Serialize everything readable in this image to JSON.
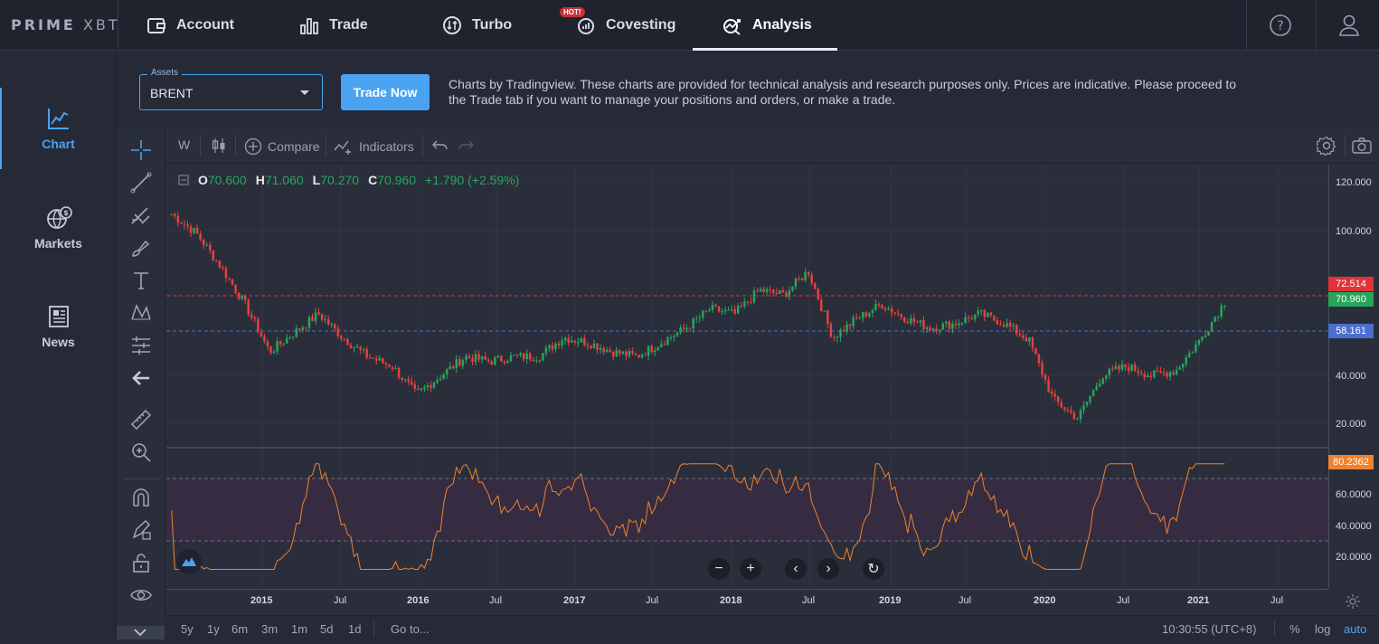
{
  "brand": {
    "logo_main": "PRIME",
    "logo_sub": "XBT"
  },
  "nav": {
    "tabs": [
      {
        "label": "Account",
        "icon": "wallet-icon"
      },
      {
        "label": "Trade",
        "icon": "bar-chart-icon"
      },
      {
        "label": "Turbo",
        "icon": "turbo-icon"
      },
      {
        "label": "Covesting",
        "icon": "covesting-icon",
        "badge": "HOT!"
      },
      {
        "label": "Analysis",
        "icon": "analysis-icon",
        "active": true
      }
    ],
    "help_icon": "help-icon",
    "profile_icon": "user-icon"
  },
  "sidebar": {
    "items": [
      {
        "label": "Chart",
        "icon": "chart-line-icon",
        "active": true
      },
      {
        "label": "Markets",
        "icon": "globe-dollar-icon"
      },
      {
        "label": "News",
        "icon": "newspaper-icon"
      }
    ]
  },
  "assets": {
    "label": "Assets",
    "value": "BRENT"
  },
  "trade_now": "Trade Now",
  "disclaimer": "Charts by Tradingview. These charts are provided for technical analysis and research purposes only. Prices are indicative. Please proceed to the Trade tab if you want to manage your positions and orders, or make a trade.",
  "toolbar": {
    "interval": "W",
    "compare": "Compare",
    "indicators": "Indicators"
  },
  "ohlc": {
    "o_key": "O",
    "o": "70.600",
    "h_key": "H",
    "h": "71.060",
    "l_key": "L",
    "l": "70.270",
    "c_key": "C",
    "c": "70.960",
    "change": "+1.790 (+2.59%)"
  },
  "price_labels": [
    "120.000",
    "100.000",
    "40.000",
    "20.000"
  ],
  "price_tags": {
    "red": "72.514",
    "green": "70.960",
    "blue": "58.161",
    "rsi": "80.2362"
  },
  "rsi_labels": [
    "60.0000",
    "40.0000",
    "20.0000"
  ],
  "time_labels": [
    "2015",
    "Jul",
    "2016",
    "Jul",
    "2017",
    "Jul",
    "2018",
    "Jul",
    "2019",
    "Jul",
    "2020",
    "Jul",
    "2021",
    "Jul"
  ],
  "bottom_bar": {
    "ranges": [
      "5y",
      "1y",
      "6m",
      "3m",
      "1m",
      "5d",
      "1d"
    ],
    "goto": "Go to...",
    "time": "10:30:55 (UTC+8)",
    "percent": "%",
    "log": "log",
    "auto": "auto"
  },
  "colors": {
    "accent": "#4aa3f0",
    "up": "#26a65b",
    "down": "#e5413e",
    "rsi": "#f0822d",
    "red_line": "#e0323a",
    "blue_line": "#4a6fd1"
  },
  "chart_data": {
    "type": "candlestick",
    "symbol": "BRENT",
    "interval": "W",
    "x": [
      "2014-09",
      "2014-10",
      "2014-11",
      "2014-12",
      "2015-01",
      "2015-03",
      "2015-05",
      "2015-07",
      "2015-09",
      "2015-11",
      "2016-01",
      "2016-03",
      "2016-05",
      "2016-07",
      "2016-09",
      "2016-11",
      "2017-01",
      "2017-03",
      "2017-05",
      "2017-07",
      "2017-09",
      "2017-11",
      "2018-01",
      "2018-03",
      "2018-05",
      "2018-07",
      "2018-10",
      "2018-12",
      "2019-02",
      "2019-04",
      "2019-06",
      "2019-08",
      "2019-10",
      "2019-12",
      "2020-01",
      "2020-02",
      "2020-03",
      "2020-04",
      "2020-06",
      "2020-08",
      "2020-10",
      "2020-11",
      "2021-01",
      "2021-03"
    ],
    "close": [
      108,
      100,
      86,
      70,
      50,
      58,
      66,
      56,
      48,
      44,
      32,
      40,
      48,
      46,
      48,
      48,
      56,
      54,
      50,
      48,
      54,
      60,
      68,
      66,
      76,
      74,
      84,
      56,
      64,
      70,
      64,
      60,
      62,
      66,
      62,
      55,
      30,
      22,
      40,
      44,
      40,
      42,
      55,
      71
    ],
    "ylim": [
      10,
      125
    ],
    "horizontal_lines": [
      72.514,
      58.161
    ],
    "rsi": {
      "name": "RSI",
      "last": 80.2362,
      "ylim": [
        0,
        90
      ],
      "bands": [
        30,
        70
      ]
    }
  }
}
